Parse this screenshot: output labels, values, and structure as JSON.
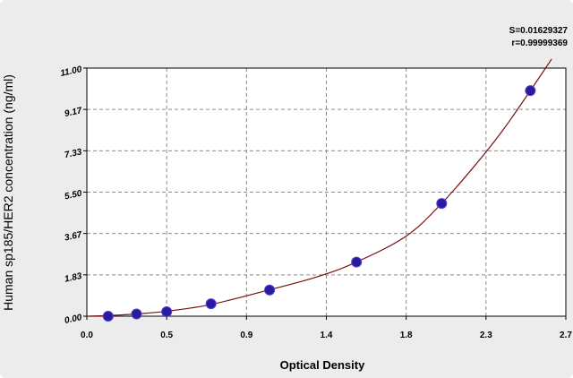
{
  "chart_data": {
    "type": "scatter",
    "title": "",
    "xlabel": "Optical Density",
    "ylabel": "Human sp185/HER2 concentration (ng/ml)",
    "xlim": [
      0.0,
      2.7
    ],
    "ylim": [
      0.0,
      11.0
    ],
    "x_ticks": [
      "0.0",
      "0.5",
      "0.9",
      "1.4",
      "1.8",
      "2.3",
      "2.7"
    ],
    "y_ticks": [
      "0.00",
      "1.83",
      "3.67",
      "5.50",
      "7.33",
      "9.17",
      "11.00"
    ],
    "grid": true,
    "stats": [
      "S=0.01629327",
      "r=0.99999369"
    ],
    "points": [
      {
        "x": 0.12,
        "y": 0.0
      },
      {
        "x": 0.28,
        "y": 0.1
      },
      {
        "x": 0.45,
        "y": 0.2
      },
      {
        "x": 0.7,
        "y": 0.55
      },
      {
        "x": 1.03,
        "y": 1.16
      },
      {
        "x": 1.52,
        "y": 2.4
      },
      {
        "x": 2.0,
        "y": 5.0
      },
      {
        "x": 2.5,
        "y": 10.0
      }
    ],
    "fit_curve": [
      [
        0.0,
        0.0
      ],
      [
        0.12,
        0.03
      ],
      [
        0.28,
        0.1
      ],
      [
        0.45,
        0.22
      ],
      [
        0.7,
        0.52
      ],
      [
        1.03,
        1.17
      ],
      [
        1.3,
        1.75
      ],
      [
        1.52,
        2.4
      ],
      [
        1.8,
        3.55
      ],
      [
        2.0,
        5.0
      ],
      [
        2.2,
        6.8
      ],
      [
        2.35,
        8.3
      ],
      [
        2.5,
        10.0
      ],
      [
        2.62,
        11.4
      ]
    ],
    "colors": {
      "point": "#2a1b9e",
      "curve": "#7a1010",
      "grid": "#8a8a8a",
      "plot_bg": "#ffffff",
      "page_bg": "#ececec"
    }
  }
}
